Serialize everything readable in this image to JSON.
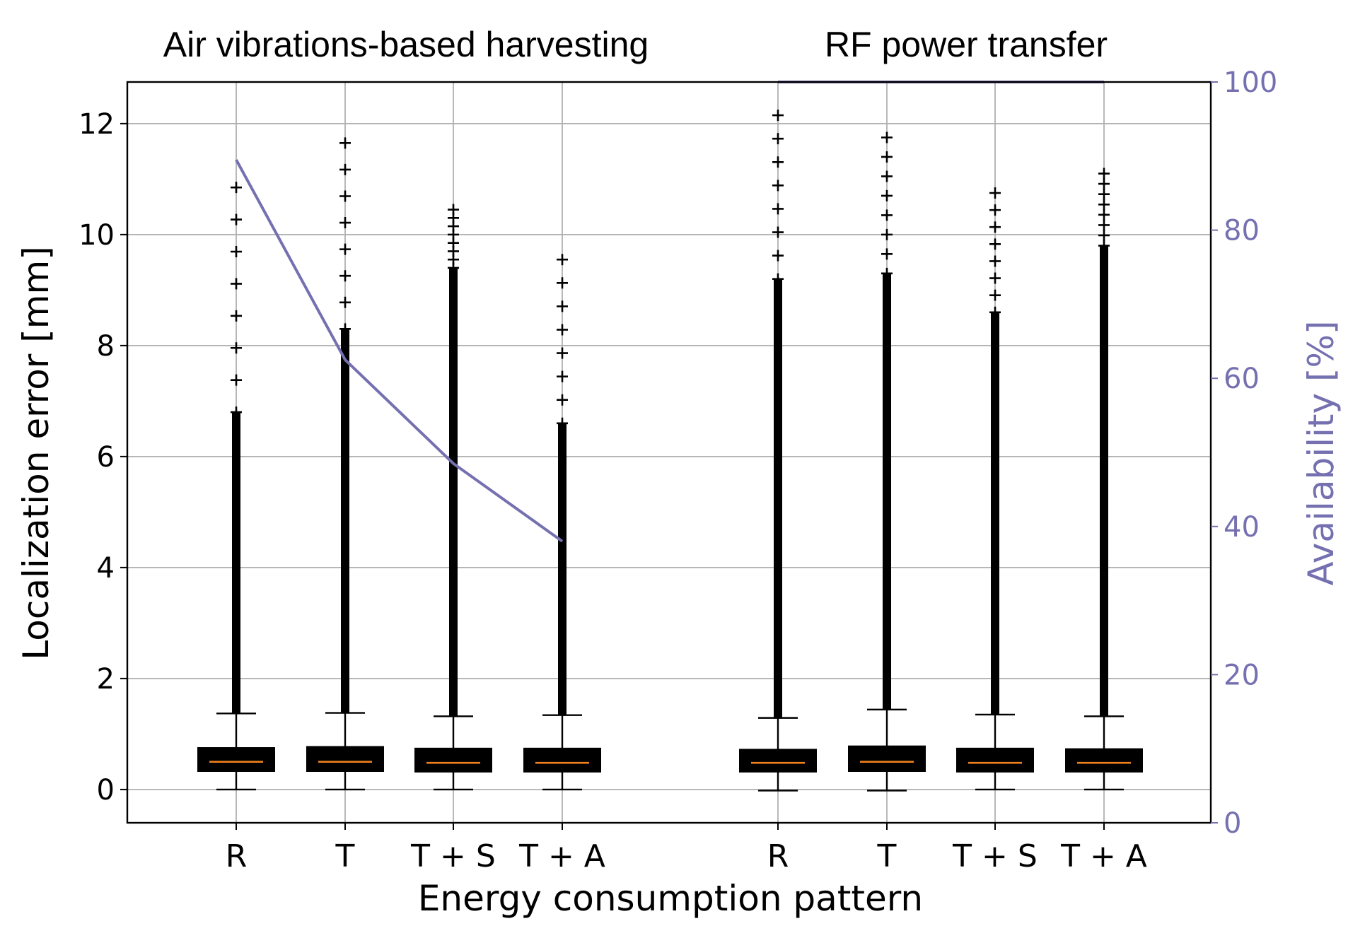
{
  "chart_data": {
    "type": "box",
    "group_titles": [
      "Air vibrations-based harvesting",
      "RF power transfer"
    ],
    "categories": [
      "R",
      "T",
      "T + S",
      "T + A",
      "R",
      "T",
      "T + S",
      "T + A"
    ],
    "xlabel": "Energy consumption pattern",
    "ylabel": "Localization error [mm]",
    "y2label": "Availability [%]",
    "ylim": [
      -0.6,
      12.75
    ],
    "y2lim": [
      0,
      100
    ],
    "yticks": [
      0,
      2,
      4,
      6,
      8,
      10,
      12
    ],
    "y2ticks": [
      0,
      20,
      40,
      60,
      80,
      100
    ],
    "grid": true,
    "accent_color": "#7570b0",
    "median_color": "#f07f1e",
    "boxes": [
      {
        "group": "Air vibrations-based harvesting",
        "category": "R",
        "whislo": 0.0,
        "q1": 0.33,
        "med": 0.5,
        "q3": 0.75,
        "whishi": 1.37,
        "outlier_max": 10.85,
        "dense_to": 6.8
      },
      {
        "group": "Air vibrations-based harvesting",
        "category": "T",
        "whislo": 0.0,
        "q1": 0.33,
        "med": 0.5,
        "q3": 0.77,
        "whishi": 1.38,
        "outlier_max": 11.65,
        "dense_to": 8.3
      },
      {
        "group": "Air vibrations-based harvesting",
        "category": "T + S",
        "whislo": 0.0,
        "q1": 0.32,
        "med": 0.48,
        "q3": 0.74,
        "whishi": 1.32,
        "outlier_max": 10.45,
        "dense_to": 9.4
      },
      {
        "group": "Air vibrations-based harvesting",
        "category": "T + A",
        "whislo": 0.0,
        "q1": 0.32,
        "med": 0.48,
        "q3": 0.74,
        "whishi": 1.34,
        "outlier_max": 9.55,
        "dense_to": 6.6
      },
      {
        "group": "RF power transfer",
        "category": "R",
        "whislo": -0.02,
        "q1": 0.32,
        "med": 0.48,
        "q3": 0.72,
        "whishi": 1.29,
        "outlier_max": 12.15,
        "dense_to": 9.2
      },
      {
        "group": "RF power transfer",
        "category": "T",
        "whislo": -0.02,
        "q1": 0.33,
        "med": 0.5,
        "q3": 0.78,
        "whishi": 1.44,
        "outlier_max": 11.75,
        "dense_to": 9.3
      },
      {
        "group": "RF power transfer",
        "category": "T + S",
        "whislo": 0.0,
        "q1": 0.32,
        "med": 0.48,
        "q3": 0.74,
        "whishi": 1.35,
        "outlier_max": 10.75,
        "dense_to": 8.6
      },
      {
        "group": "RF power transfer",
        "category": "T + A",
        "whislo": 0.0,
        "q1": 0.32,
        "med": 0.48,
        "q3": 0.73,
        "whishi": 1.32,
        "outlier_max": 11.1,
        "dense_to": 9.8
      }
    ],
    "availability_series": [
      {
        "group": "Air vibrations-based harvesting",
        "categories": [
          "R",
          "T",
          "T + S",
          "T + A"
        ],
        "values": [
          89.5,
          62.5,
          48.5,
          38.0
        ]
      },
      {
        "group": "RF power transfer",
        "categories": [
          "R",
          "T + A"
        ],
        "values": [
          100,
          100
        ]
      }
    ]
  }
}
